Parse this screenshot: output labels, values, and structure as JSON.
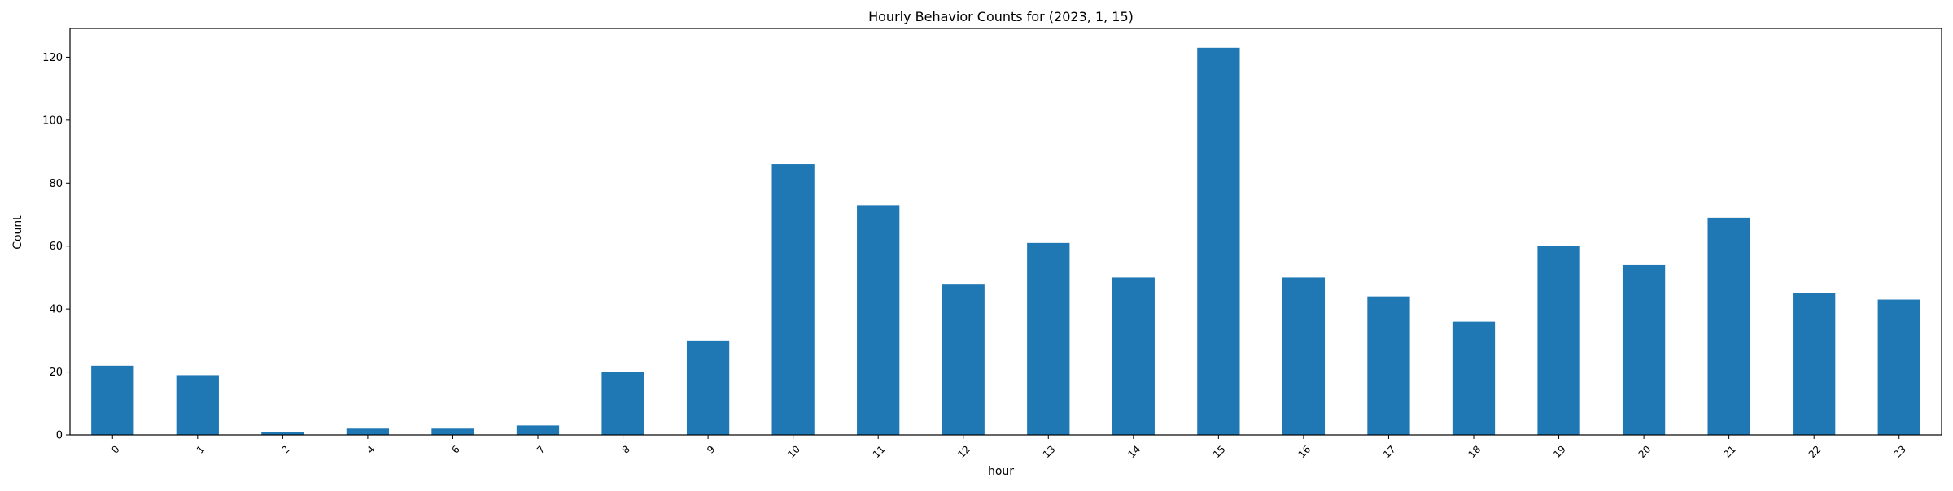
{
  "chart_data": {
    "type": "bar",
    "title": "Hourly Behavior Counts for (2023, 1, 15)",
    "xlabel": "hour",
    "ylabel": "Count",
    "categories": [
      "0",
      "1",
      "2",
      "4",
      "6",
      "7",
      "8",
      "9",
      "10",
      "11",
      "12",
      "13",
      "14",
      "15",
      "16",
      "17",
      "18",
      "19",
      "20",
      "21",
      "22",
      "23"
    ],
    "values": [
      22,
      19,
      1,
      2,
      2,
      3,
      20,
      30,
      86,
      73,
      48,
      61,
      50,
      123,
      50,
      44,
      36,
      60,
      54,
      69,
      45,
      43
    ],
    "ylim": [
      0,
      129.15
    ],
    "yticks": [
      0,
      20,
      40,
      60,
      80,
      100,
      120
    ],
    "grid": false,
    "bar_color": "#1f77b4",
    "xtick_rotation_deg": 45
  }
}
